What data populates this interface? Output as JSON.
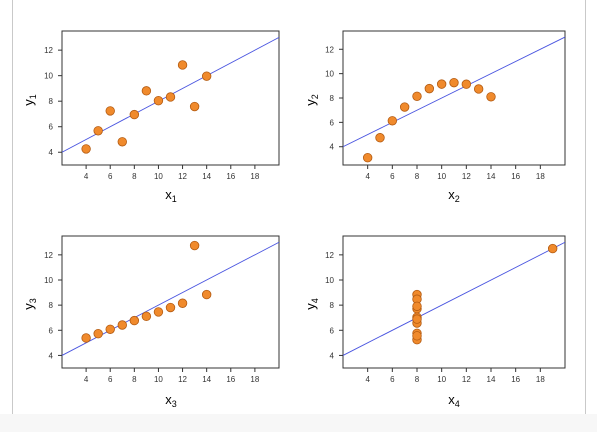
{
  "theme": {
    "point_fill": "#f08a2c",
    "point_stroke": "#b35b12",
    "line_color": "#4a55e0",
    "axis_color": "#333333",
    "frame_color": "#c9c9c9"
  },
  "chart_data": [
    {
      "type": "scatter",
      "id": "I",
      "xlabel": "x",
      "xlabel_sub": "1",
      "ylabel": "y",
      "ylabel_sub": "1",
      "xlim": [
        2,
        20
      ],
      "ylim": [
        3,
        13.5
      ],
      "xticks": [
        4,
        6,
        8,
        10,
        12,
        14,
        16,
        18
      ],
      "yticks": [
        4,
        6,
        8,
        10,
        12
      ],
      "grid": false,
      "points": [
        {
          "x": 10,
          "y": 8.04
        },
        {
          "x": 8,
          "y": 6.95
        },
        {
          "x": 13,
          "y": 7.58
        },
        {
          "x": 9,
          "y": 8.81
        },
        {
          "x": 11,
          "y": 8.33
        },
        {
          "x": 14,
          "y": 9.96
        },
        {
          "x": 6,
          "y": 7.24
        },
        {
          "x": 4,
          "y": 4.26
        },
        {
          "x": 12,
          "y": 10.84
        },
        {
          "x": 7,
          "y": 4.82
        },
        {
          "x": 5,
          "y": 5.68
        }
      ],
      "fit": {
        "intercept": 3.0,
        "slope": 0.5
      }
    },
    {
      "type": "scatter",
      "id": "II",
      "xlabel": "x",
      "xlabel_sub": "2",
      "ylabel": "y",
      "ylabel_sub": "2",
      "xlim": [
        2,
        20
      ],
      "ylim": [
        2.5,
        13.5
      ],
      "xticks": [
        4,
        6,
        8,
        10,
        12,
        14,
        16,
        18
      ],
      "yticks": [
        4,
        6,
        8,
        10,
        12
      ],
      "grid": false,
      "points": [
        {
          "x": 10,
          "y": 9.14
        },
        {
          "x": 8,
          "y": 8.14
        },
        {
          "x": 13,
          "y": 8.74
        },
        {
          "x": 9,
          "y": 8.77
        },
        {
          "x": 11,
          "y": 9.26
        },
        {
          "x": 14,
          "y": 8.1
        },
        {
          "x": 6,
          "y": 6.13
        },
        {
          "x": 4,
          "y": 3.1
        },
        {
          "x": 12,
          "y": 9.13
        },
        {
          "x": 7,
          "y": 7.26
        },
        {
          "x": 5,
          "y": 4.74
        }
      ],
      "fit": {
        "intercept": 3.0,
        "slope": 0.5
      }
    },
    {
      "type": "scatter",
      "id": "III",
      "xlabel": "x",
      "xlabel_sub": "3",
      "ylabel": "y",
      "ylabel_sub": "3",
      "xlim": [
        2,
        20
      ],
      "ylim": [
        3,
        13.5
      ],
      "xticks": [
        4,
        6,
        8,
        10,
        12,
        14,
        16,
        18
      ],
      "yticks": [
        4,
        6,
        8,
        10,
        12
      ],
      "grid": false,
      "points": [
        {
          "x": 10,
          "y": 7.46
        },
        {
          "x": 8,
          "y": 6.77
        },
        {
          "x": 13,
          "y": 12.74
        },
        {
          "x": 9,
          "y": 7.11
        },
        {
          "x": 11,
          "y": 7.81
        },
        {
          "x": 14,
          "y": 8.84
        },
        {
          "x": 6,
          "y": 6.08
        },
        {
          "x": 4,
          "y": 5.39
        },
        {
          "x": 12,
          "y": 8.15
        },
        {
          "x": 7,
          "y": 6.42
        },
        {
          "x": 5,
          "y": 5.73
        }
      ],
      "fit": {
        "intercept": 3.0,
        "slope": 0.5
      }
    },
    {
      "type": "scatter",
      "id": "IV",
      "xlabel": "x",
      "xlabel_sub": "4",
      "ylabel": "y",
      "ylabel_sub": "4",
      "xlim": [
        2,
        20
      ],
      "ylim": [
        3,
        13.5
      ],
      "xticks": [
        4,
        6,
        8,
        10,
        12,
        14,
        16,
        18
      ],
      "yticks": [
        4,
        6,
        8,
        10,
        12
      ],
      "grid": false,
      "points": [
        {
          "x": 8,
          "y": 6.58
        },
        {
          "x": 8,
          "y": 5.76
        },
        {
          "x": 8,
          "y": 7.71
        },
        {
          "x": 8,
          "y": 8.84
        },
        {
          "x": 8,
          "y": 8.47
        },
        {
          "x": 8,
          "y": 7.04
        },
        {
          "x": 8,
          "y": 5.25
        },
        {
          "x": 19,
          "y": 12.5
        },
        {
          "x": 8,
          "y": 5.56
        },
        {
          "x": 8,
          "y": 7.91
        },
        {
          "x": 8,
          "y": 6.89
        }
      ],
      "fit": {
        "intercept": 3.0,
        "slope": 0.5
      }
    }
  ]
}
